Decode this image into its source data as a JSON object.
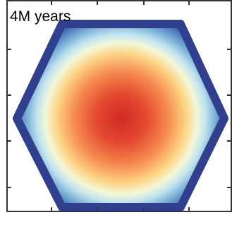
{
  "panel": {
    "label": "4M years"
  }
}
